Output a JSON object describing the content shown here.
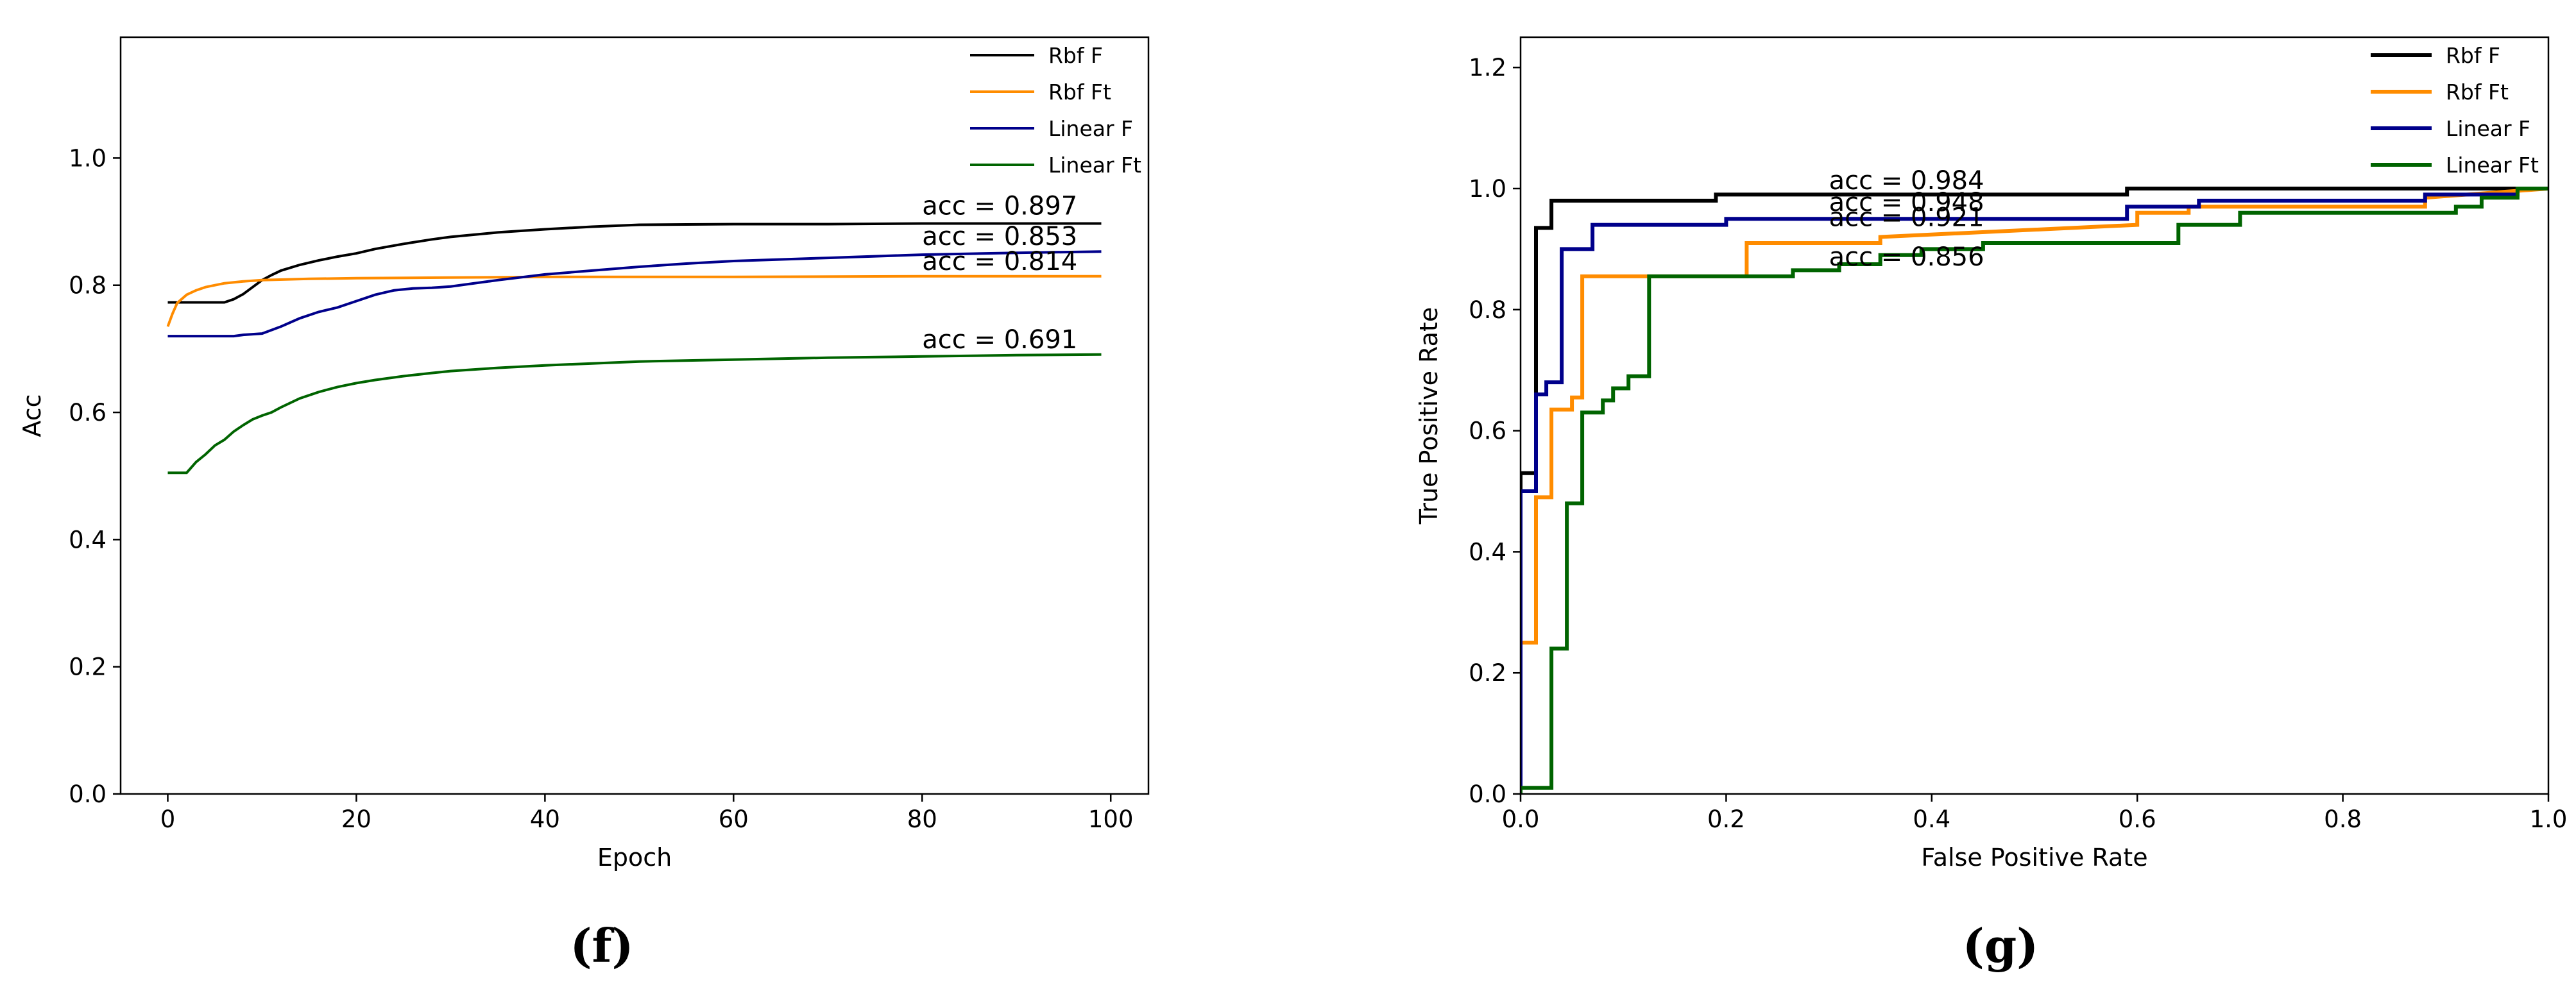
{
  "colors": {
    "Rbf F": "#000000",
    "Rbf Ft": "#ff8c00",
    "Linear F": "#00008b",
    "Linear Ft": "#006400"
  },
  "chart_data": [
    {
      "type": "line",
      "caption": "(f)",
      "title": "",
      "xlabel": "Epoch",
      "ylabel": "Acc",
      "xlim": [
        -5,
        104
      ],
      "ylim": [
        0.0,
        1.19
      ],
      "xticks": [
        0,
        20,
        40,
        60,
        80,
        100
      ],
      "yticks": [
        0.0,
        0.2,
        0.4,
        0.6,
        0.8,
        1.0
      ],
      "xtick_labels": [
        "0",
        "20",
        "40",
        "60",
        "80",
        "100"
      ],
      "ytick_labels": [
        "0.0",
        "0.2",
        "0.4",
        "0.6",
        "0.8",
        "1.0"
      ],
      "legend": {
        "position": "top-right",
        "entries": [
          "Rbf F",
          "Rbf Ft",
          "Linear F",
          "Linear Ft"
        ]
      },
      "series": [
        {
          "name": "Rbf F",
          "x": [
            0,
            2,
            4,
            6,
            7,
            8,
            9,
            10,
            11,
            12,
            14,
            16,
            18,
            20,
            22,
            25,
            28,
            30,
            35,
            40,
            45,
            50,
            60,
            70,
            80,
            90,
            99
          ],
          "y": [
            0.773,
            0.773,
            0.773,
            0.773,
            0.778,
            0.786,
            0.797,
            0.808,
            0.816,
            0.823,
            0.832,
            0.839,
            0.845,
            0.85,
            0.857,
            0.865,
            0.872,
            0.876,
            0.883,
            0.888,
            0.892,
            0.895,
            0.896,
            0.896,
            0.897,
            0.897,
            0.897
          ]
        },
        {
          "name": "Rbf Ft",
          "x": [
            0,
            0.5,
            1,
            2,
            3,
            4,
            5,
            6,
            8,
            10,
            15,
            20,
            30,
            40,
            60,
            80,
            99
          ],
          "y": [
            0.735,
            0.755,
            0.772,
            0.785,
            0.792,
            0.797,
            0.8,
            0.803,
            0.806,
            0.808,
            0.81,
            0.811,
            0.812,
            0.813,
            0.813,
            0.814,
            0.814
          ]
        },
        {
          "name": "Linear F",
          "x": [
            0,
            2,
            4,
            6,
            7,
            8,
            10,
            12,
            14,
            16,
            18,
            20,
            22,
            24,
            26,
            28,
            30,
            35,
            40,
            45,
            50,
            55,
            60,
            70,
            80,
            90,
            99
          ],
          "y": [
            0.72,
            0.72,
            0.72,
            0.72,
            0.72,
            0.722,
            0.724,
            0.735,
            0.748,
            0.758,
            0.765,
            0.775,
            0.785,
            0.792,
            0.795,
            0.796,
            0.798,
            0.808,
            0.817,
            0.823,
            0.829,
            0.834,
            0.838,
            0.843,
            0.848,
            0.851,
            0.853
          ]
        },
        {
          "name": "Linear Ft",
          "x": [
            0,
            2,
            3,
            4,
            5,
            6,
            7,
            8,
            9,
            10,
            11,
            12,
            14,
            16,
            18,
            20,
            22,
            25,
            28,
            30,
            35,
            40,
            45,
            50,
            60,
            70,
            80,
            90,
            99
          ],
          "y": [
            0.505,
            0.505,
            0.522,
            0.534,
            0.548,
            0.557,
            0.57,
            0.58,
            0.589,
            0.595,
            0.6,
            0.608,
            0.622,
            0.632,
            0.64,
            0.646,
            0.651,
            0.657,
            0.662,
            0.665,
            0.67,
            0.674,
            0.677,
            0.68,
            0.683,
            0.686,
            0.688,
            0.69,
            0.691
          ]
        }
      ],
      "annotations": [
        {
          "text": "acc = 0.897",
          "x": 80,
          "y": 0.897
        },
        {
          "text": "acc = 0.853",
          "x": 80,
          "y": 0.853
        },
        {
          "text": "acc = 0.814",
          "x": 80,
          "y": 0.814
        },
        {
          "text": "acc = 0.691",
          "x": 80,
          "y": 0.691
        }
      ]
    },
    {
      "type": "line",
      "step": true,
      "caption": "(g)",
      "title": "",
      "xlabel": "False Positive Rate",
      "ylabel": "True Positive Rate",
      "xlim": [
        0.0,
        1.0
      ],
      "ylim": [
        0.0,
        1.25
      ],
      "xticks": [
        0.0,
        0.2,
        0.4,
        0.6,
        0.8,
        1.0
      ],
      "yticks": [
        0.0,
        0.2,
        0.4,
        0.6,
        0.8,
        1.0,
        1.2
      ],
      "xtick_labels": [
        "0.0",
        "0.2",
        "0.4",
        "0.6",
        "0.8",
        "1.0"
      ],
      "ytick_labels": [
        "0.0",
        "0.2",
        "0.4",
        "0.6",
        "0.8",
        "1.0",
        "1.2"
      ],
      "legend": {
        "position": "top-right",
        "entries": [
          "Rbf F",
          "Rbf Ft",
          "Linear F",
          "Linear Ft"
        ]
      },
      "series": [
        {
          "name": "Rbf F",
          "x": [
            0.0,
            0.0,
            0.015,
            0.015,
            0.03,
            0.03,
            0.19,
            0.19,
            0.59,
            0.59,
            1.0
          ],
          "y": [
            0.0,
            0.53,
            0.53,
            0.935,
            0.935,
            0.98,
            0.98,
            0.99,
            0.99,
            1.0,
            1.0
          ]
        },
        {
          "name": "Rbf Ft",
          "x": [
            0.0,
            0.0,
            0.015,
            0.015,
            0.03,
            0.03,
            0.05,
            0.05,
            0.06,
            0.06,
            0.22,
            0.22,
            0.35,
            0.35,
            0.6,
            0.6,
            0.65,
            0.65,
            0.88,
            0.88,
            1.0
          ],
          "y": [
            0.0,
            0.25,
            0.25,
            0.49,
            0.49,
            0.635,
            0.635,
            0.655,
            0.655,
            0.855,
            0.855,
            0.91,
            0.91,
            0.92,
            0.94,
            0.96,
            0.96,
            0.97,
            0.97,
            0.985,
            1.0
          ]
        },
        {
          "name": "Linear F",
          "x": [
            0.0,
            0.0,
            0.015,
            0.015,
            0.025,
            0.025,
            0.04,
            0.04,
            0.07,
            0.07,
            0.2,
            0.2,
            0.59,
            0.59,
            0.66,
            0.66,
            0.88,
            0.88,
            0.97,
            0.97,
            1.0
          ],
          "y": [
            0.0,
            0.5,
            0.5,
            0.66,
            0.66,
            0.68,
            0.68,
            0.9,
            0.9,
            0.94,
            0.94,
            0.95,
            0.95,
            0.97,
            0.97,
            0.98,
            0.98,
            0.99,
            0.99,
            1.0,
            1.0
          ]
        },
        {
          "name": "Linear Ft",
          "x": [
            0.0,
            0.0,
            0.03,
            0.03,
            0.045,
            0.045,
            0.06,
            0.06,
            0.08,
            0.08,
            0.09,
            0.09,
            0.105,
            0.105,
            0.125,
            0.125,
            0.265,
            0.265,
            0.31,
            0.31,
            0.35,
            0.35,
            0.39,
            0.39,
            0.45,
            0.45,
            0.64,
            0.64,
            0.7,
            0.7,
            0.91,
            0.91,
            0.935,
            0.935,
            0.97,
            0.97,
            1.0
          ],
          "y": [
            0.0,
            0.01,
            0.01,
            0.24,
            0.24,
            0.48,
            0.48,
            0.63,
            0.63,
            0.65,
            0.65,
            0.67,
            0.67,
            0.69,
            0.69,
            0.855,
            0.855,
            0.865,
            0.865,
            0.875,
            0.875,
            0.89,
            0.89,
            0.9,
            0.9,
            0.91,
            0.91,
            0.94,
            0.94,
            0.96,
            0.96,
            0.97,
            0.97,
            0.985,
            0.985,
            1.0,
            1.0
          ]
        }
      ],
      "annotations": [
        {
          "text": "acc = 0.984",
          "x": 0.3,
          "y": 0.984
        },
        {
          "text": "acc = 0.948",
          "x": 0.3,
          "y": 0.948
        },
        {
          "text": "acc = 0.921",
          "x": 0.3,
          "y": 0.921
        },
        {
          "text": "acc = 0.856",
          "x": 0.3,
          "y": 0.856
        }
      ]
    }
  ]
}
